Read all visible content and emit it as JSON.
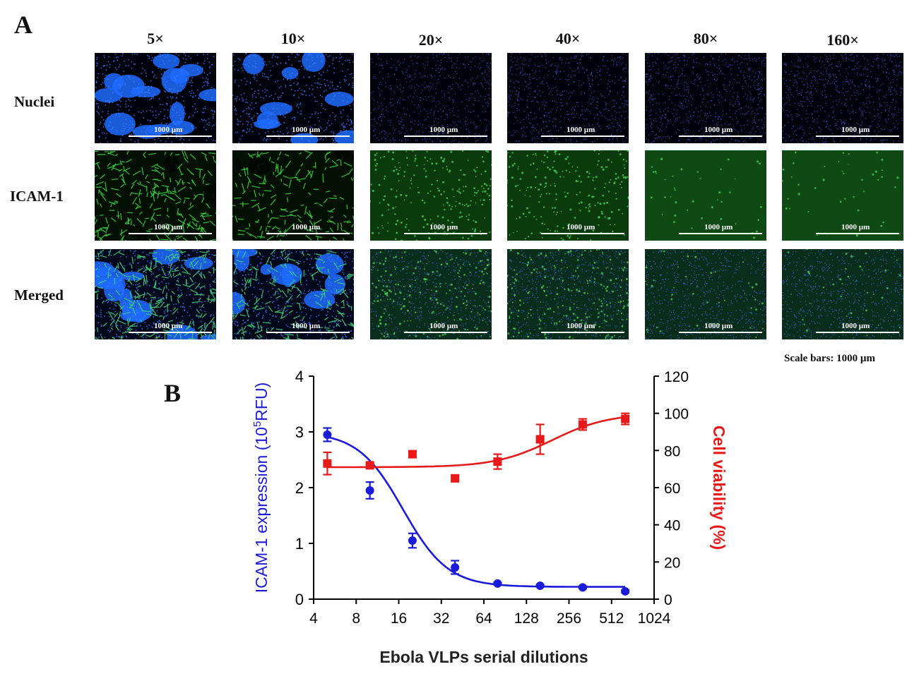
{
  "panel_a": {
    "letter": "A",
    "columns": [
      "5×",
      "10×",
      "20×",
      "40×",
      "80×",
      "160×"
    ],
    "rows": [
      "Nuclei",
      "ICAM-1",
      "Merged"
    ],
    "scale_bar_label": "1000 µm",
    "scale_note": "Scale bars: 1000 µm",
    "colors": {
      "nuclei": "#1f5cff",
      "icam": "#2fb82f",
      "background": "#02020a"
    }
  },
  "panel_b": {
    "letter": "B"
  },
  "chart_data": {
    "type": "scatter",
    "xlabel": "Ebola VLPs serial dilutions",
    "x_scale": "log2",
    "xlim": [
      4,
      1024
    ],
    "x_ticks": [
      4,
      8,
      16,
      32,
      64,
      128,
      256,
      512,
      1024
    ],
    "x_tick_labels": [
      "4",
      "8",
      "16",
      "32",
      "64",
      "128",
      "256",
      "512",
      "1024"
    ],
    "series": [
      {
        "name": "ICAM-1 expression",
        "axis": "left",
        "color": "#1a1adb",
        "marker": "circle",
        "x": [
          5,
          10,
          20,
          40,
          80,
          160,
          320,
          640
        ],
        "y": [
          2.95,
          1.95,
          1.05,
          0.57,
          0.28,
          0.24,
          0.21,
          0.14
        ],
        "error": [
          0.12,
          0.15,
          0.13,
          0.12,
          0.02,
          0.02,
          0.02,
          0.02
        ],
        "fit": "sigmoid-decreasing"
      },
      {
        "name": "Cell viability",
        "axis": "right",
        "color": "#e81919",
        "marker": "square",
        "x": [
          5,
          10,
          20,
          40,
          80,
          160,
          320,
          640
        ],
        "y": [
          73,
          72,
          78,
          65,
          74,
          86,
          94,
          97
        ],
        "error": [
          6,
          1,
          1,
          1,
          4,
          8,
          3,
          3
        ],
        "fit": "sigmoid-increasing"
      }
    ],
    "y_left": {
      "label_prefix": "ICAM-1 expression (10",
      "label_sup": "5",
      "label_suffix": "RFU)",
      "lim": [
        0,
        4
      ],
      "ticks": [
        0,
        1,
        2,
        3,
        4
      ]
    },
    "y_right": {
      "label": "Cell viability (%)",
      "lim": [
        0,
        120
      ],
      "ticks": [
        0,
        20,
        40,
        60,
        80,
        100,
        120
      ]
    }
  }
}
